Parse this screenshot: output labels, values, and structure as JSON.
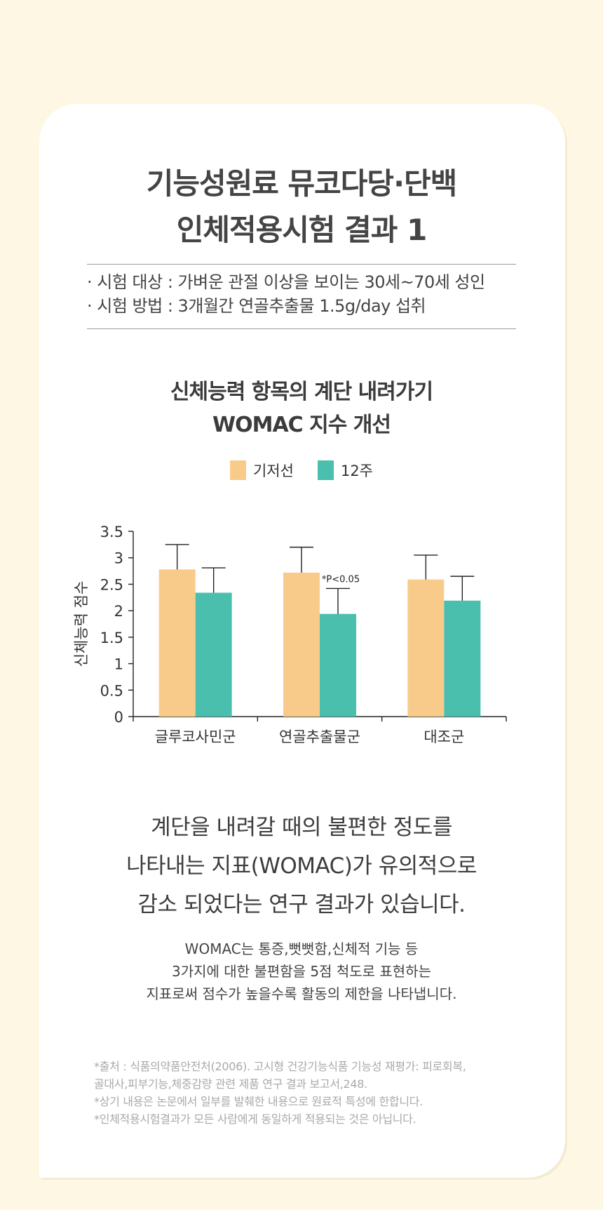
{
  "header": {
    "title_line1": "기능성원료 뮤코다당·단백",
    "title_line2": "인체적용시험 결과 1"
  },
  "trial": {
    "subject": "· 시험 대상 : 가벼운 관절 이상을 보이는 30세~70세 성인",
    "method": "· 시험 방법 : 3개월간 연골추출물 1.5g/day 섭취"
  },
  "chart_data": {
    "type": "bar",
    "title": "신체능력 항목의 계단 내려가기",
    "subtitle": "WOMAC 지수 개선",
    "ylabel": "신체능력 점수",
    "xlabel": "",
    "categories": [
      "글루코사민군",
      "연골추출물군",
      "대조군"
    ],
    "series": [
      {
        "name": "기저선",
        "color": "#f9cb8b",
        "values": [
          2.78,
          2.72,
          2.59
        ],
        "error": [
          0.47,
          0.48,
          0.46
        ]
      },
      {
        "name": "12주",
        "color": "#4bbfae",
        "values": [
          2.34,
          1.94,
          2.19
        ],
        "error": [
          0.47,
          0.48,
          0.46
        ]
      }
    ],
    "ylim": [
      0,
      3.5
    ],
    "yticks": [
      "0",
      "0.5",
      "1",
      "1.5",
      "2",
      "2.5",
      "3",
      "3.5"
    ],
    "annotation": "*P<0.05",
    "grid": false,
    "legend": "top-center"
  },
  "message": {
    "line1": "계단을 내려갈 때의 불편한 정도를",
    "line2": "나타내는 지표(WOMAC)가 유의적으로",
    "line3": "감소 되었다는 연구 결과가 있습니다."
  },
  "description": {
    "line1": "WOMAC는 통증,뻣뻣함,신체적 기능 등",
    "line2": "3가지에 대한 불편함을 5점 척도로 표현하는",
    "line3": "지표로써 점수가 높을수록 활동의 제한을 나타냅니다."
  },
  "footnotes": {
    "line1": "*출처 : 식품의약품안전처(2006). 고시형 건강기능식품 기능성 재평가: 피로회복,",
    "line2": "골대사,피부기능,체중감량 관련 제품 연구 결과 보고서,248.",
    "line3": "*상기 내용은 논문에서 일부를 발췌한 내용으로 원료적 특성에 한합니다.",
    "line4": "*인체적용시험결과가 모든 사람에게 동일하게 적용되는 것은 아닙니다."
  }
}
